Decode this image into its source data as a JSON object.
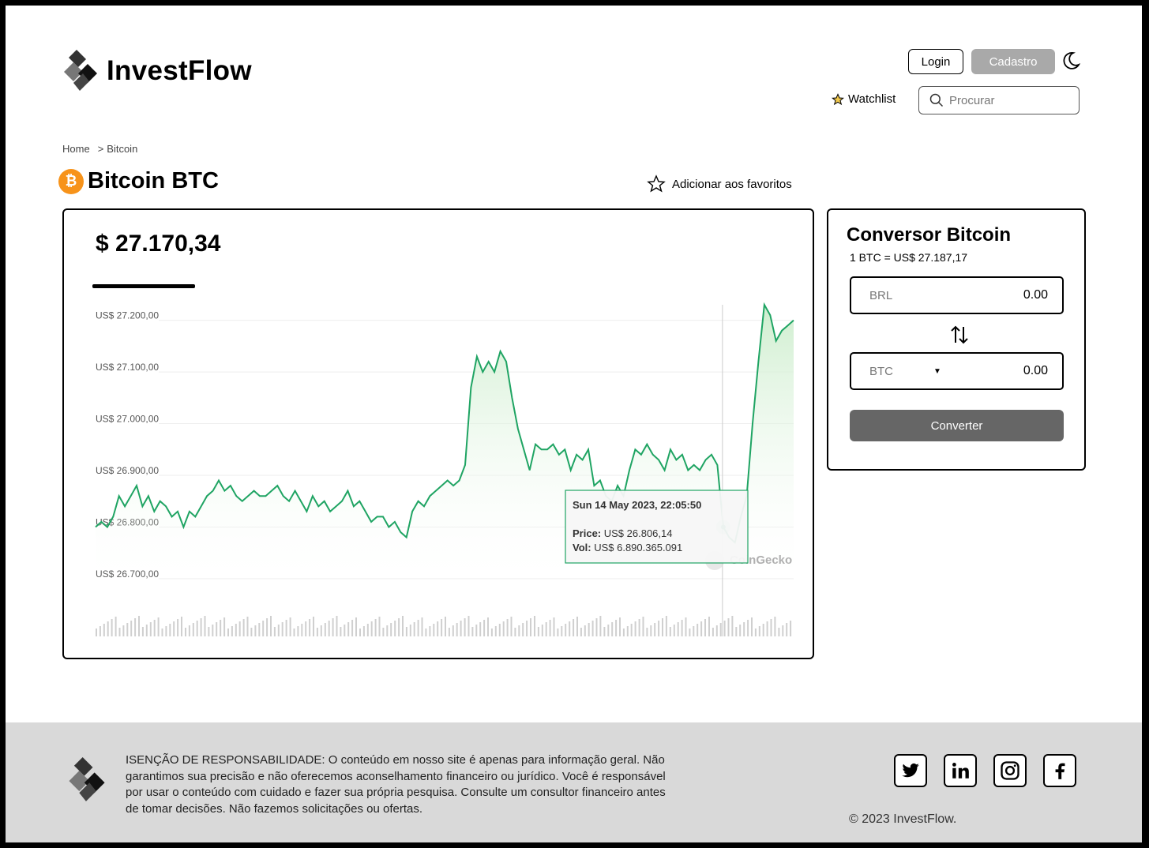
{
  "header": {
    "brand": "InvestFlow",
    "login_label": "Login",
    "signup_label": "Cadastro",
    "watchlist_label": "Watchlist",
    "search_placeholder": "Procurar"
  },
  "breadcrumb": {
    "home": "Home",
    "separator": ">",
    "current": "Bitcoin"
  },
  "coin": {
    "icon_symbol": "₿",
    "title": "Bitcoin BTC",
    "favorite_label": "Adicionar aos favoritos",
    "price": "$ 27.170,34"
  },
  "chart_data": {
    "type": "line",
    "y_tick_labels": [
      "US$ 27.200,00",
      "US$ 27.100,00",
      "US$ 27.000,00",
      "US$ 26.900,00",
      "US$ 26.800,00",
      "US$ 26.700,00"
    ],
    "ylim": [
      26680,
      27230
    ],
    "y_ticks": [
      27200,
      27100,
      27000,
      26900,
      26800,
      26700
    ],
    "series": [
      {
        "values": [
          26800,
          26810,
          26800,
          26820,
          26860,
          26840,
          26860,
          26880,
          26840,
          26860,
          26830,
          26850,
          26840,
          26820,
          26830,
          26800,
          26830,
          26820,
          26840,
          26860,
          26870,
          26890,
          26870,
          26880,
          26860,
          26850,
          26860,
          26870,
          26860,
          26860,
          26870,
          26880,
          26860,
          26850,
          26870,
          26850,
          26830,
          26860,
          26840,
          26850,
          26830,
          26840,
          26850,
          26870,
          26840,
          26850,
          26830,
          26810,
          26820,
          26820,
          26800,
          26810,
          26790,
          26780,
          26830,
          26850,
          26840,
          26860,
          26870,
          26880,
          26890,
          26880,
          26890,
          26920,
          27070,
          27130,
          27100,
          27120,
          27100,
          27140,
          27120,
          27050,
          26990,
          26950,
          26910,
          26960,
          26950,
          26950,
          26960,
          26940,
          26950,
          26910,
          26940,
          26930,
          26950,
          26880,
          26890,
          26860,
          26850,
          26880,
          26860,
          26910,
          26950,
          26940,
          26960,
          26940,
          26930,
          26910,
          26950,
          26930,
          26940,
          26910,
          26920,
          26910,
          26930,
          26940,
          26920,
          26800,
          26780,
          26770,
          26820,
          26860,
          27000,
          27120,
          27230,
          27210,
          27160,
          27180,
          27190,
          27200
        ],
        "color": "#1fa463"
      }
    ],
    "tooltip": {
      "date": "Sun 14 May 2023, 22:05:50",
      "price_label": "Price:",
      "price_value": "US$ 26.806,14",
      "vol_label": "Vol:",
      "vol_value": "US$ 6.890.365.091"
    },
    "watermark": "CoinGecko",
    "grid": true
  },
  "converter": {
    "title": "Conversor Bitcoin",
    "rate": "1 BTC = US$ 27.187,17",
    "from_currency": "BRL",
    "from_value": "0.00",
    "to_currency": "BTC",
    "to_value": "0.00",
    "button_label": "Converter"
  },
  "footer": {
    "disclaimer": "ISENÇÃO DE RESPONSABILIDADE: O conteúdo em nosso site é apenas para informação geral. Não garantimos sua precisão e não oferecemos aconselhamento financeiro ou jurídico. Você é responsável por usar o conteúdo com cuidado e fazer sua própria pesquisa. Consulte um consultor financeiro antes de tomar decisões. Não fazemos solicitações ou ofertas.",
    "copyright": "© 2023 InvestFlow.",
    "socials": [
      "twitter-icon",
      "linkedin-icon",
      "instagram-icon",
      "facebook-icon"
    ]
  }
}
